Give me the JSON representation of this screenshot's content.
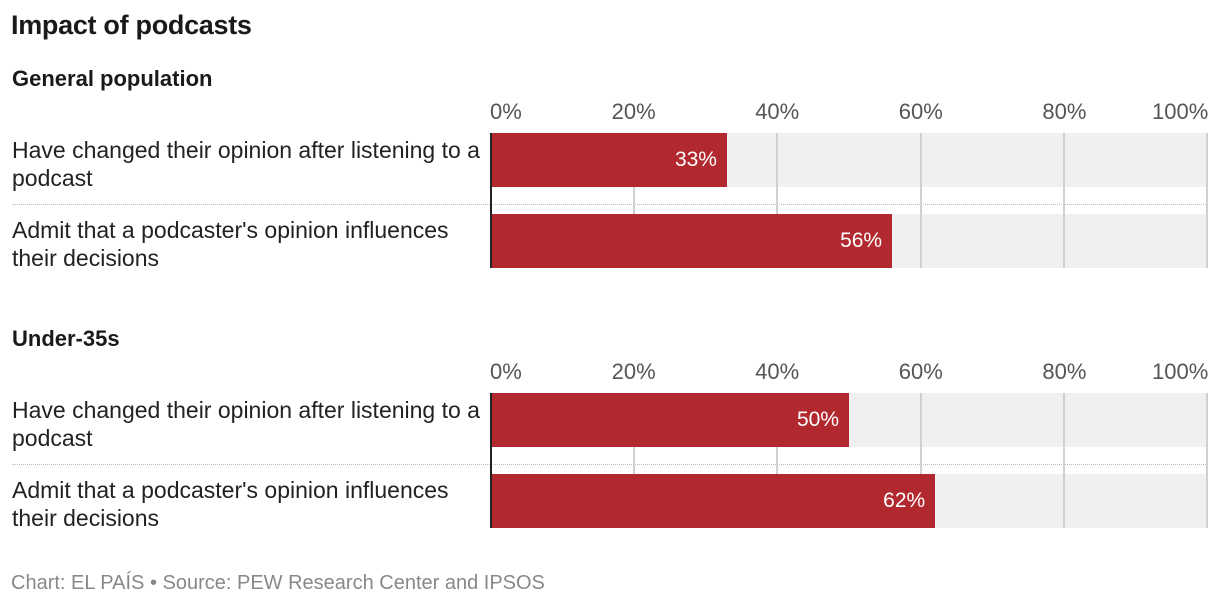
{
  "title": "Impact of podcasts",
  "footer": "Chart: EL PAÍS • Source: PEW Research Center and IPSOS",
  "colors": {
    "bar": "#b1292f",
    "track": "#f0f0f0",
    "grid": "#d0d0d0"
  },
  "chart_data": [
    {
      "type": "bar",
      "orientation": "horizontal",
      "title": "General population",
      "categories": [
        "Have changed their opinion after listening to a podcast",
        "Admit that a podcaster's opinion influences their decisions"
      ],
      "values": [
        33,
        56
      ],
      "value_labels": [
        "33%",
        "56%"
      ],
      "xlim": [
        0,
        100
      ],
      "ticks": [
        0,
        20,
        40,
        60,
        80,
        100
      ],
      "tick_labels": [
        "0%",
        "20%",
        "40%",
        "60%",
        "80%",
        "100%"
      ]
    },
    {
      "type": "bar",
      "orientation": "horizontal",
      "title": "Under-35s",
      "categories": [
        "Have changed their opinion after listening to a podcast",
        "Admit that a podcaster's opinion influences their decisions"
      ],
      "values": [
        50,
        62
      ],
      "value_labels": [
        "50%",
        "62%"
      ],
      "xlim": [
        0,
        100
      ],
      "ticks": [
        0,
        20,
        40,
        60,
        80,
        100
      ],
      "tick_labels": [
        "0%",
        "20%",
        "40%",
        "60%",
        "80%",
        "100%"
      ]
    }
  ]
}
